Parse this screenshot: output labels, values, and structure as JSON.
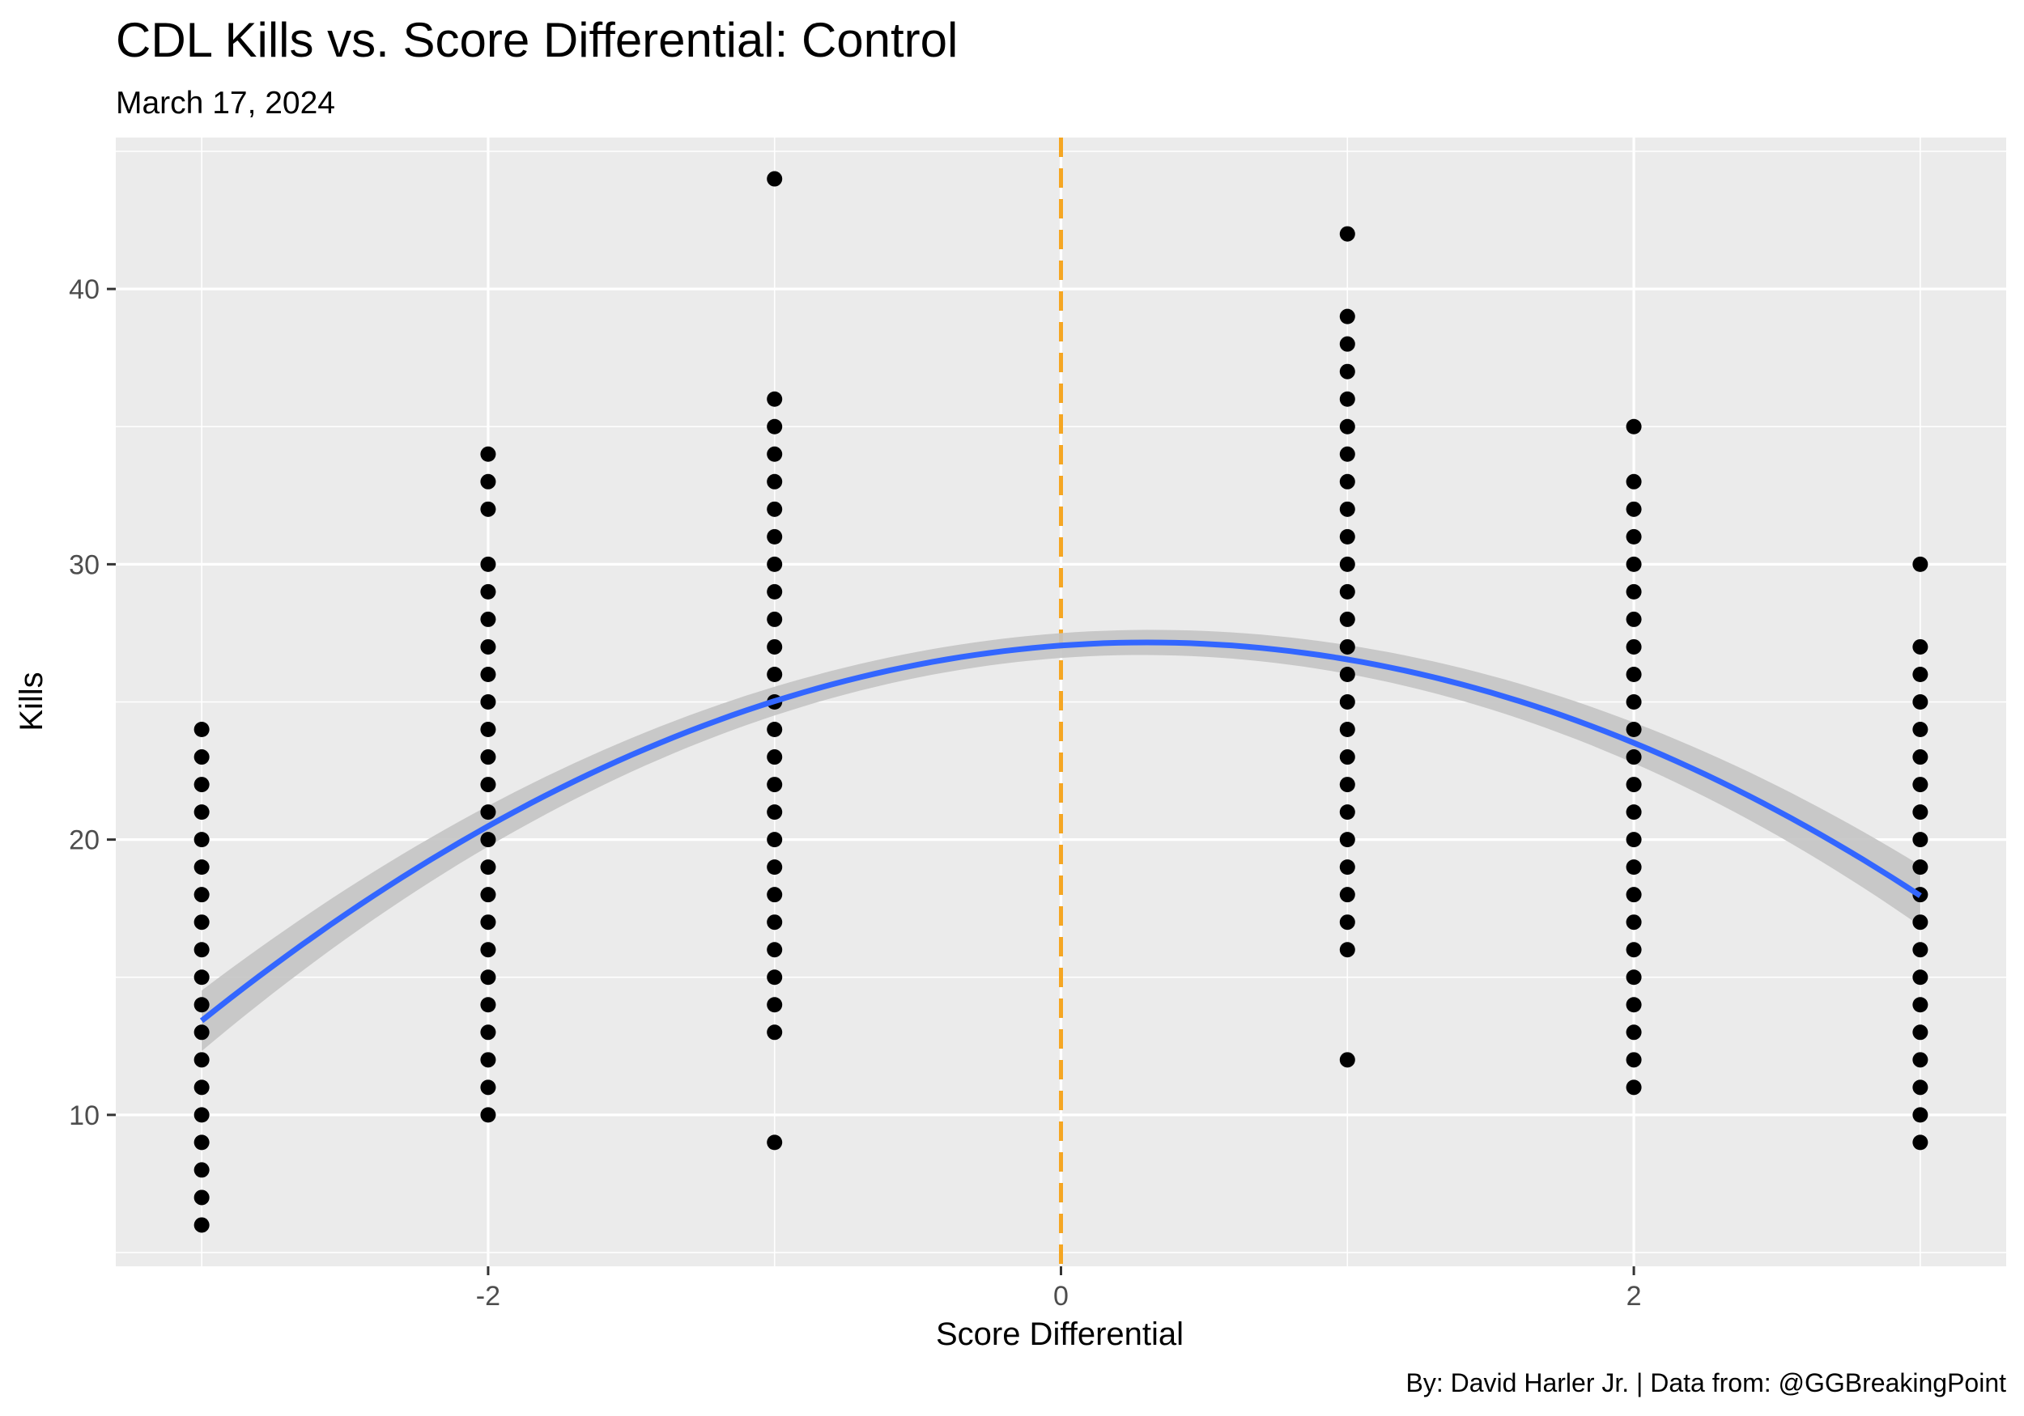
{
  "chart_data": {
    "type": "scatter",
    "title": "CDL Kills vs. Score Differential: Control",
    "subtitle": "March 17, 2024",
    "xlabel": "Score Differential",
    "ylabel": "Kills",
    "caption": "By: David Harler Jr. | Data from: @GGBreakingPoint",
    "xlim": [
      -3.3,
      3.3
    ],
    "ylim": [
      4.5,
      45.5
    ],
    "x_ticks": [
      -2,
      0,
      2
    ],
    "x_tick_labels": [
      "-2",
      "0",
      "2"
    ],
    "y_ticks": [
      10,
      20,
      30,
      40
    ],
    "y_tick_labels": [
      "10",
      "20",
      "30",
      "40"
    ],
    "grid": true,
    "background": "#ebebeb",
    "point_color": "#000000",
    "reference_line": {
      "x": 0,
      "style": "dashed",
      "color": "#f5a623"
    },
    "trend": {
      "type": "quadratic fit",
      "color": "#3366ff",
      "band_color": "#c4c4c4",
      "x": [
        -3,
        -2,
        -1,
        0,
        1,
        2,
        3
      ],
      "y": [
        13.8,
        20.0,
        24.7,
        27.3,
        26.9,
        23.5,
        17.8
      ]
    },
    "points": [
      {
        "x": -3,
        "y": [
          6,
          7,
          8,
          9,
          10,
          11,
          12,
          13,
          14,
          15,
          16,
          17,
          18,
          19,
          20,
          21,
          22,
          23,
          24
        ]
      },
      {
        "x": -2,
        "y": [
          10,
          11,
          12,
          13,
          14,
          15,
          16,
          17,
          18,
          19,
          20,
          21,
          22,
          23,
          24,
          25,
          26,
          27,
          28,
          29,
          30,
          32,
          33,
          34
        ]
      },
      {
        "x": -1,
        "y": [
          9,
          13,
          14,
          15,
          16,
          17,
          18,
          19,
          20,
          21,
          22,
          23,
          24,
          25,
          26,
          27,
          28,
          29,
          30,
          31,
          32,
          33,
          34,
          35,
          36,
          44
        ]
      },
      {
        "x": 1,
        "y": [
          12,
          16,
          17,
          18,
          19,
          20,
          21,
          22,
          23,
          24,
          25,
          26,
          27,
          28,
          29,
          30,
          31,
          32,
          33,
          34,
          35,
          36,
          37,
          38,
          39,
          42
        ]
      },
      {
        "x": 2,
        "y": [
          11,
          12,
          13,
          14,
          15,
          16,
          17,
          18,
          19,
          20,
          21,
          22,
          23,
          24,
          25,
          26,
          27,
          28,
          29,
          30,
          31,
          32,
          33,
          35
        ]
      },
      {
        "x": 3,
        "y": [
          9,
          10,
          11,
          12,
          13,
          14,
          15,
          16,
          17,
          18,
          19,
          20,
          21,
          22,
          23,
          24,
          25,
          26,
          27,
          30
        ]
      }
    ]
  }
}
